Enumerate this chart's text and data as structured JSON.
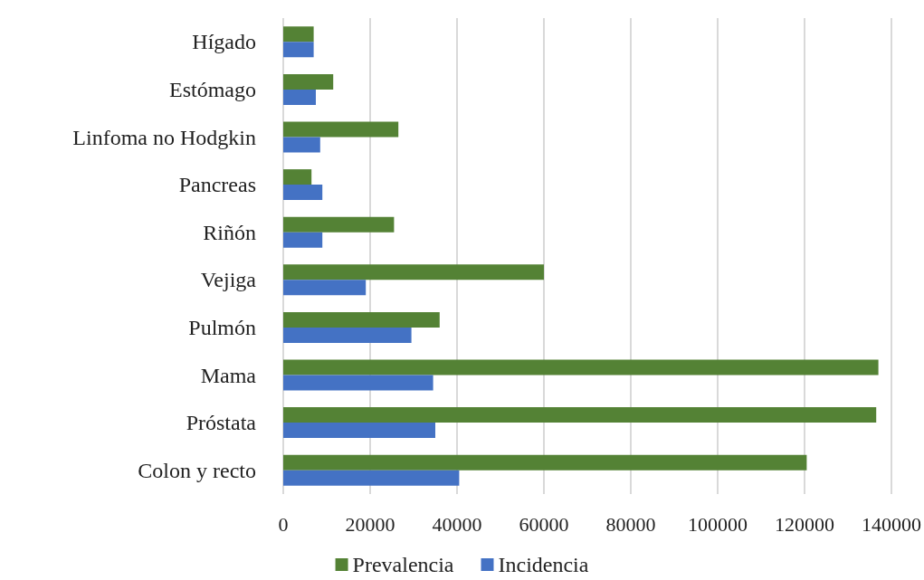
{
  "chart_data": {
    "type": "bar",
    "orientation": "horizontal",
    "categories": [
      "Hígado",
      "Estómago",
      "Linfoma no Hodgkin",
      "Pancreas",
      "Riñón",
      "Vejiga",
      "Pulmón",
      "Mama",
      "Próstata",
      "Colon y recto"
    ],
    "series": [
      {
        "name": "Prevalencia",
        "color": "#548235",
        "values": [
          7000,
          11500,
          26500,
          6500,
          25500,
          60000,
          36000,
          137000,
          136500,
          120500
        ]
      },
      {
        "name": "Incidencia",
        "color": "#4472c4",
        "values": [
          7000,
          7500,
          8500,
          9000,
          9000,
          19000,
          29500,
          34500,
          35000,
          40500
        ]
      }
    ],
    "xlim": [
      0,
      140000
    ],
    "xticks": [
      0,
      20000,
      40000,
      60000,
      80000,
      100000,
      120000,
      140000
    ],
    "grid": "x",
    "legend": "bottom"
  }
}
